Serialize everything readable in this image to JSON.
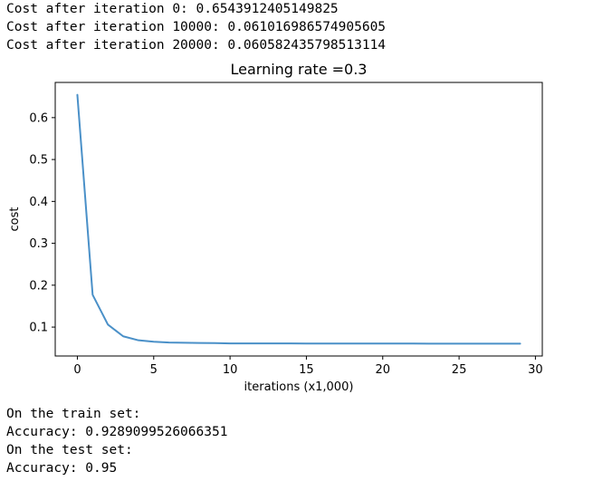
{
  "output_top": [
    "Cost after iteration 0: 0.6543912405149825",
    "Cost after iteration 10000: 0.061016986574905605",
    "Cost after iteration 20000: 0.060582435798513114"
  ],
  "output_bottom": [
    "On the train set:",
    "Accuracy: 0.9289099526066351",
    "On the test set:",
    "Accuracy: 0.95"
  ],
  "chart_data": {
    "type": "line",
    "title": "Learning rate =0.3",
    "xlabel": "iterations (x1,000)",
    "ylabel": "cost",
    "xlim": [
      -1.45,
      30.45
    ],
    "ylim": [
      0.031,
      0.684
    ],
    "xticks": [
      0,
      5,
      10,
      15,
      20,
      25,
      30
    ],
    "yticks": [
      0.1,
      0.2,
      0.3,
      0.4,
      0.5,
      0.6
    ],
    "ytick_labels": [
      "0.1",
      "0.2",
      "0.3",
      "0.4",
      "0.5",
      "0.6"
    ],
    "grid": false,
    "line_color": "#4a90c8",
    "series": [
      {
        "name": "",
        "x": [
          0,
          1,
          2,
          3,
          4,
          5,
          6,
          7,
          8,
          9,
          10,
          11,
          12,
          13,
          14,
          15,
          16,
          17,
          18,
          19,
          20,
          21,
          22,
          23,
          24,
          25,
          26,
          27,
          28,
          29
        ],
        "y": [
          0.6544,
          0.177,
          0.106,
          0.078,
          0.0685,
          0.065,
          0.0632,
          0.0625,
          0.0621,
          0.0619,
          0.061,
          0.061,
          0.0609,
          0.0609,
          0.0609,
          0.0608,
          0.0608,
          0.0608,
          0.0607,
          0.0607,
          0.0606,
          0.0606,
          0.0606,
          0.0605,
          0.0605,
          0.0605,
          0.0605,
          0.0604,
          0.0604,
          0.0604
        ]
      }
    ]
  }
}
